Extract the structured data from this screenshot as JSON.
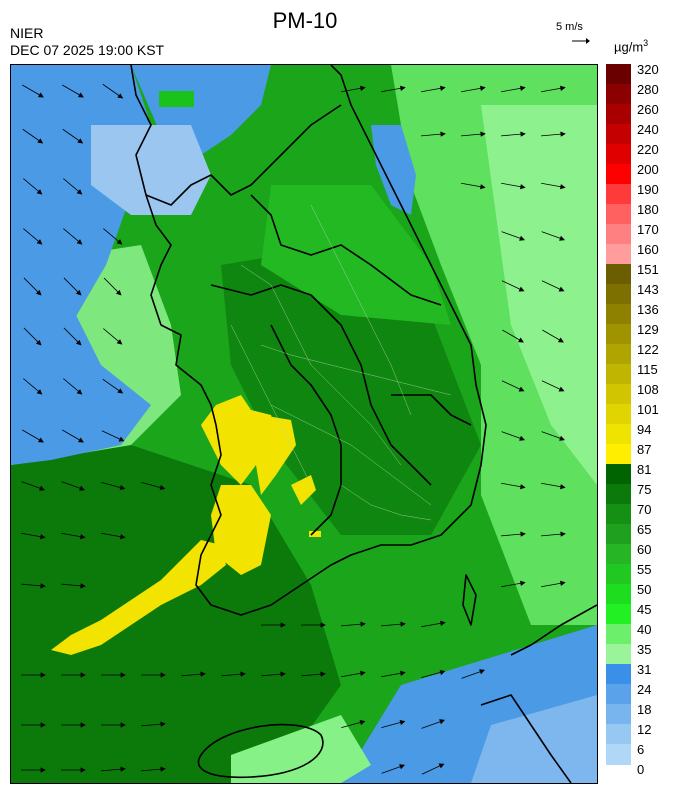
{
  "header": {
    "title": "PM-10",
    "agency": "NIER",
    "datetime": "DEC 07 2025 19:00 KST",
    "wind_reference": "5 m/s",
    "unit_base": "µg/m",
    "unit_exp": "3"
  },
  "legend": {
    "labels": [
      "320",
      "280",
      "260",
      "240",
      "220",
      "200",
      "190",
      "180",
      "170",
      "160",
      "151",
      "143",
      "136",
      "129",
      "122",
      "115",
      "108",
      "101",
      "94",
      "87",
      "81",
      "75",
      "70",
      "65",
      "60",
      "55",
      "50",
      "45",
      "40",
      "35",
      "31",
      "24",
      "18",
      "12",
      "6",
      "0"
    ],
    "colors": [
      "#6a0000",
      "#8b0000",
      "#a80000",
      "#c40000",
      "#e00000",
      "#ff0000",
      "#ff3a3a",
      "#ff6060",
      "#ff8080",
      "#ff9c9c",
      "#6b5e00",
      "#7d7000",
      "#8e8100",
      "#a09300",
      "#b0a400",
      "#c0b500",
      "#d0c500",
      "#e0d500",
      "#eee400",
      "#ffee00",
      "#006400",
      "#0b7a0b",
      "#159015",
      "#1fa01f",
      "#25b525",
      "#22c822",
      "#1edc1e",
      "#22f022",
      "#6cf06c",
      "#9af59a",
      "#3a8fe8",
      "#5aa2ea",
      "#78b5ee",
      "#96c8f2",
      "#b0d8f6"
    ]
  },
  "colors": {
    "water": "#4a9ae6",
    "land_green": "#2ab62a",
    "dark_green": "#0e820e",
    "light_green": "#86f186",
    "yellow": "#f2e400",
    "border": "#000000"
  }
}
